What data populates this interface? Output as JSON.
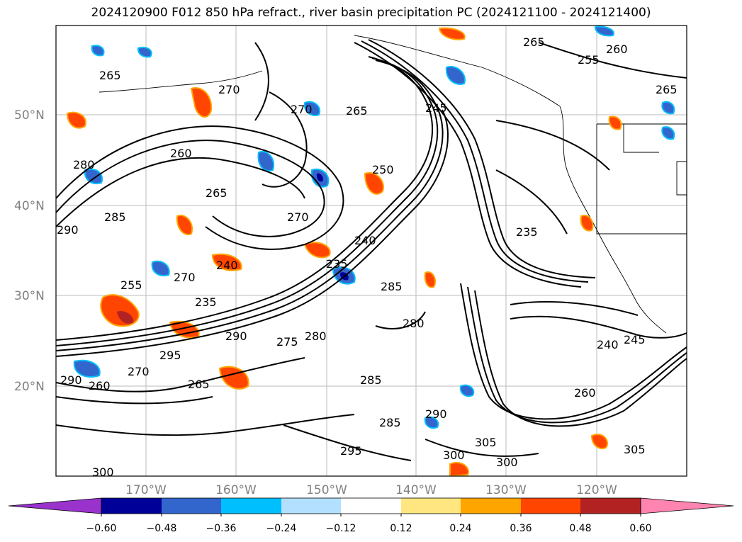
{
  "title": "2024120900 F012 850 hPa refract., river basin precipitation PC (2024121100 - 2024121400)",
  "lat_labels": [
    "50°N",
    "40°N",
    "30°N",
    "20°N"
  ],
  "lon_labels": [
    "170°W",
    "160°W",
    "150°W",
    "140°W",
    "130°W",
    "120°W"
  ],
  "contour_labels": [
    "265",
    "270",
    "265",
    "270",
    "260",
    "280",
    "285",
    "290",
    "250",
    "270",
    "270",
    "240",
    "235",
    "235",
    "285",
    "280",
    "275",
    "280",
    "255",
    "270",
    "240",
    "295",
    "285",
    "290",
    "260",
    "265",
    "300",
    "295",
    "300",
    "305",
    "300",
    "285",
    "260",
    "240",
    "245",
    "235",
    "245",
    "255",
    "260",
    "265",
    "265",
    "265",
    "290",
    "290",
    "305"
  ],
  "colorbar": {
    "ticks": [
      "−0.60",
      "−0.48",
      "−0.36",
      "−0.24",
      "−0.12",
      "0.12",
      "0.24",
      "0.36",
      "0.48",
      "0.60"
    ],
    "colors": [
      "#9933cc",
      "#000099",
      "#3366cc",
      "#00bfff",
      "#b3e0ff",
      "#ffffff",
      "#ffe680",
      "#ffa500",
      "#ff4500",
      "#b22222",
      "#ff85b0"
    ]
  }
}
